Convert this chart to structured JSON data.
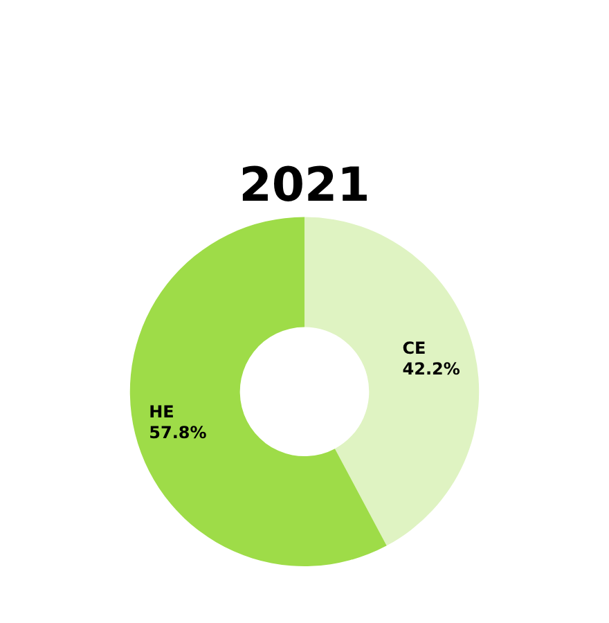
{
  "chart_data": {
    "type": "donut",
    "title": "2021",
    "categories": [
      "CE",
      "HE"
    ],
    "values": [
      42.2,
      57.8
    ],
    "value_labels": [
      "42.2%",
      "57.8%"
    ],
    "colors": [
      "#dff3c2",
      "#9edc48"
    ],
    "legend": false
  }
}
